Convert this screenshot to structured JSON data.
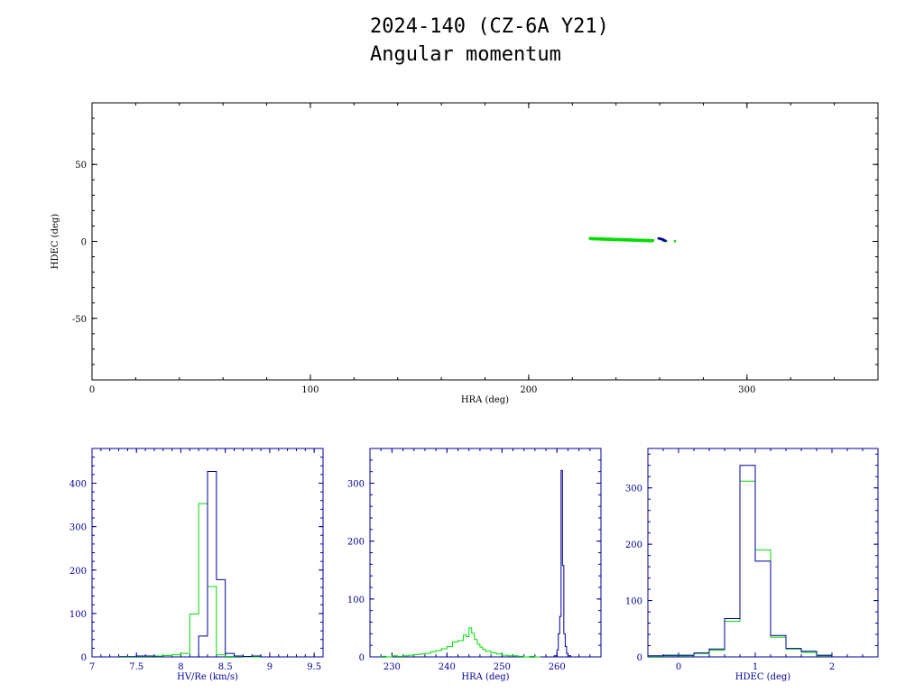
{
  "title": {
    "line1": "2024-140 (CZ-6A Y21)",
    "line2": "Angular momentum"
  },
  "colors": {
    "green": "#00dd00",
    "blue": "#000099",
    "axis": "#000000",
    "hist_axis": "#000099"
  },
  "chart_data": [
    {
      "type": "scatter",
      "xlabel": "HRA (deg)",
      "ylabel": "HDEC (deg)",
      "xlim": [
        0,
        360
      ],
      "ylim": [
        -90,
        90
      ],
      "xticks": [
        0,
        100,
        200,
        300
      ],
      "yticks": [
        -50,
        0,
        50
      ],
      "series": [
        {
          "color": "green",
          "segment": {
            "from": [
              228,
              1.8
            ],
            "to": [
              257,
              0.4
            ],
            "count": 120,
            "jitter": 0.4
          },
          "points": [
            [
              262,
              0.3
            ],
            [
              263,
              0.2
            ],
            [
              267,
              0.1
            ]
          ]
        },
        {
          "color": "blue",
          "points": [
            [
              259.5,
              2.0
            ],
            [
              260.0,
              1.9
            ],
            [
              260.5,
              1.7
            ],
            [
              261.0,
              1.4
            ],
            [
              261.4,
              1.1
            ],
            [
              261.8,
              0.8
            ],
            [
              262.2,
              0.6
            ],
            [
              262.6,
              0.4
            ],
            [
              260.3,
              1.5
            ],
            [
              261.6,
              1.2
            ]
          ]
        }
      ]
    },
    {
      "type": "histogram",
      "xlabel": "HV/Re (km/s)",
      "xlim": [
        7,
        9.6
      ],
      "ylim": [
        0,
        480
      ],
      "xticks": [
        7,
        7.5,
        8,
        8.5,
        9,
        9.5
      ],
      "yticks": [
        0,
        100,
        200,
        300,
        400
      ],
      "series": [
        {
          "color": "green",
          "edges": [
            7.0,
            7.1,
            7.2,
            7.3,
            7.4,
            7.5,
            7.6,
            7.7,
            7.8,
            7.9,
            8.0,
            8.1,
            8.2,
            8.3,
            8.4,
            8.5,
            8.6,
            8.7,
            8.8,
            8.9,
            9.0,
            9.1
          ],
          "counts": [
            0,
            0,
            0,
            1,
            1,
            1,
            1,
            2,
            3,
            5,
            8,
            99,
            353,
            162,
            5,
            1,
            1,
            0,
            0,
            0,
            0
          ]
        },
        {
          "color": "blue",
          "edges": [
            7.0,
            7.1,
            7.2,
            7.3,
            7.4,
            7.5,
            7.6,
            7.7,
            7.8,
            7.9,
            8.0,
            8.1,
            8.2,
            8.3,
            8.4,
            8.5,
            8.6,
            8.7,
            8.8,
            8.9,
            9.0,
            9.1
          ],
          "counts": [
            0,
            0,
            0,
            0,
            0,
            2,
            2,
            0,
            0,
            0,
            0,
            0,
            48,
            427,
            178,
            8,
            2,
            1,
            2,
            0,
            0
          ]
        }
      ]
    },
    {
      "type": "histogram",
      "xlabel": "HRA (deg)",
      "xlim": [
        226,
        268
      ],
      "ylim": [
        0,
        360
      ],
      "xticks": [
        230,
        240,
        250,
        260
      ],
      "yticks": [
        0,
        100,
        200,
        300
      ],
      "series": [
        {
          "color": "green",
          "edges": [
            228,
            229,
            230,
            231,
            232,
            233,
            234,
            235,
            236,
            237,
            238,
            239,
            240,
            241,
            242,
            243,
            243.5,
            244,
            244.5,
            245,
            245.5,
            246,
            246.5,
            247,
            248,
            249,
            250,
            251,
            252,
            253,
            254,
            255,
            256,
            257
          ],
          "counts": [
            1,
            0,
            2,
            1,
            2,
            3,
            4,
            5,
            6,
            9,
            11,
            14,
            18,
            26,
            28,
            38,
            35,
            50,
            41,
            30,
            22,
            17,
            13,
            10,
            7,
            5,
            3,
            2,
            2,
            1,
            0,
            1,
            0
          ]
        },
        {
          "color": "blue",
          "edges": [
            259,
            259.5,
            260,
            260.25,
            260.5,
            260.75,
            261,
            261.25,
            261.5,
            261.75,
            262,
            262.5,
            263
          ],
          "counts": [
            0,
            2,
            12,
            40,
            70,
            322,
            158,
            40,
            18,
            6,
            2,
            0
          ]
        }
      ]
    },
    {
      "type": "histogram",
      "xlabel": "HDEC (deg)",
      "xlim": [
        -0.4,
        2.6
      ],
      "ylim": [
        0,
        370
      ],
      "xticks": [
        0,
        1,
        2
      ],
      "yticks": [
        0,
        100,
        200,
        300
      ],
      "series": [
        {
          "color": "green",
          "edges": [
            -0.4,
            -0.2,
            0.0,
            0.2,
            0.4,
            0.6,
            0.8,
            1.0,
            1.2,
            1.4,
            1.6,
            1.8,
            2.0
          ],
          "counts": [
            1,
            2,
            2,
            6,
            12,
            63,
            312,
            190,
            35,
            14,
            8,
            2
          ]
        },
        {
          "color": "blue",
          "edges": [
            -0.4,
            -0.2,
            0.0,
            0.2,
            0.4,
            0.6,
            0.8,
            1.0,
            1.2,
            1.4,
            1.6,
            1.8,
            2.0
          ],
          "counts": [
            2,
            3,
            3,
            7,
            14,
            68,
            340,
            170,
            38,
            15,
            10,
            3
          ]
        }
      ]
    }
  ]
}
